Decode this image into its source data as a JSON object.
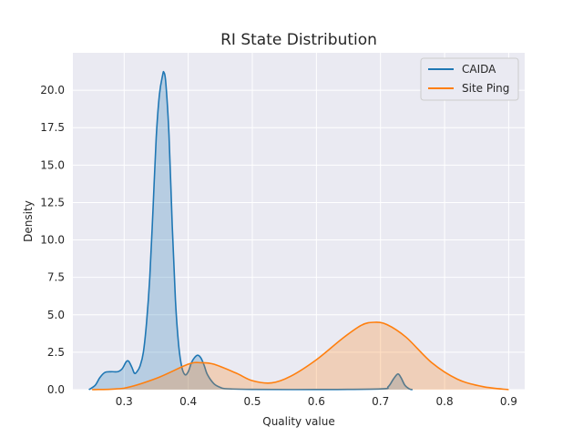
{
  "chart_data": {
    "type": "area",
    "title": "RI State Distribution",
    "xlabel": "Quality value",
    "ylabel": "Density",
    "xlim": [
      0.22,
      0.925
    ],
    "ylim": [
      0,
      22.5
    ],
    "xticks": [
      0.3,
      0.4,
      0.5,
      0.6,
      0.7,
      0.8,
      0.9
    ],
    "xtick_labels": [
      "0.3",
      "0.4",
      "0.5",
      "0.6",
      "0.7",
      "0.8",
      "0.9"
    ],
    "yticks": [
      0,
      2.5,
      5,
      7.5,
      10,
      12.5,
      15,
      17.5,
      20
    ],
    "ytick_labels": [
      "0.0",
      "2.5",
      "5.0",
      "7.5",
      "10.0",
      "12.5",
      "15.0",
      "17.5",
      "20.0"
    ],
    "grid": true,
    "legend_position": "top-right",
    "series": [
      {
        "name": "CAIDA",
        "color": "#1f77b4",
        "points": [
          [
            0.245,
            0.0
          ],
          [
            0.255,
            0.3
          ],
          [
            0.262,
            0.8
          ],
          [
            0.27,
            1.15
          ],
          [
            0.28,
            1.2
          ],
          [
            0.29,
            1.2
          ],
          [
            0.297,
            1.4
          ],
          [
            0.303,
            1.85
          ],
          [
            0.307,
            1.9
          ],
          [
            0.312,
            1.5
          ],
          [
            0.316,
            1.1
          ],
          [
            0.32,
            1.2
          ],
          [
            0.325,
            1.6
          ],
          [
            0.33,
            2.5
          ],
          [
            0.335,
            4.5
          ],
          [
            0.34,
            7.5
          ],
          [
            0.345,
            12.0
          ],
          [
            0.35,
            16.8
          ],
          [
            0.355,
            19.7
          ],
          [
            0.36,
            21.0
          ],
          [
            0.362,
            21.2
          ],
          [
            0.365,
            20.5
          ],
          [
            0.37,
            17.0
          ],
          [
            0.375,
            11.0
          ],
          [
            0.38,
            6.0
          ],
          [
            0.385,
            3.0
          ],
          [
            0.39,
            1.5
          ],
          [
            0.395,
            1.0
          ],
          [
            0.4,
            1.2
          ],
          [
            0.405,
            1.8
          ],
          [
            0.41,
            2.15
          ],
          [
            0.415,
            2.3
          ],
          [
            0.42,
            2.1
          ],
          [
            0.425,
            1.6
          ],
          [
            0.43,
            1.0
          ],
          [
            0.44,
            0.4
          ],
          [
            0.45,
            0.15
          ],
          [
            0.46,
            0.06
          ],
          [
            0.5,
            0.02
          ],
          [
            0.6,
            0.01
          ],
          [
            0.7,
            0.05
          ],
          [
            0.712,
            0.2
          ],
          [
            0.72,
            0.7
          ],
          [
            0.727,
            1.05
          ],
          [
            0.732,
            0.8
          ],
          [
            0.738,
            0.3
          ],
          [
            0.745,
            0.05
          ],
          [
            0.75,
            0.0
          ]
        ]
      },
      {
        "name": "Site Ping",
        "color": "#ff7f0e",
        "points": [
          [
            0.25,
            0.0
          ],
          [
            0.3,
            0.1
          ],
          [
            0.35,
            0.75
          ],
          [
            0.4,
            1.7
          ],
          [
            0.42,
            1.8
          ],
          [
            0.44,
            1.7
          ],
          [
            0.475,
            1.1
          ],
          [
            0.5,
            0.6
          ],
          [
            0.53,
            0.45
          ],
          [
            0.56,
            0.9
          ],
          [
            0.6,
            2.0
          ],
          [
            0.64,
            3.4
          ],
          [
            0.67,
            4.3
          ],
          [
            0.69,
            4.5
          ],
          [
            0.71,
            4.35
          ],
          [
            0.74,
            3.5
          ],
          [
            0.78,
            1.8
          ],
          [
            0.82,
            0.7
          ],
          [
            0.86,
            0.2
          ],
          [
            0.9,
            0.0
          ]
        ]
      }
    ]
  }
}
